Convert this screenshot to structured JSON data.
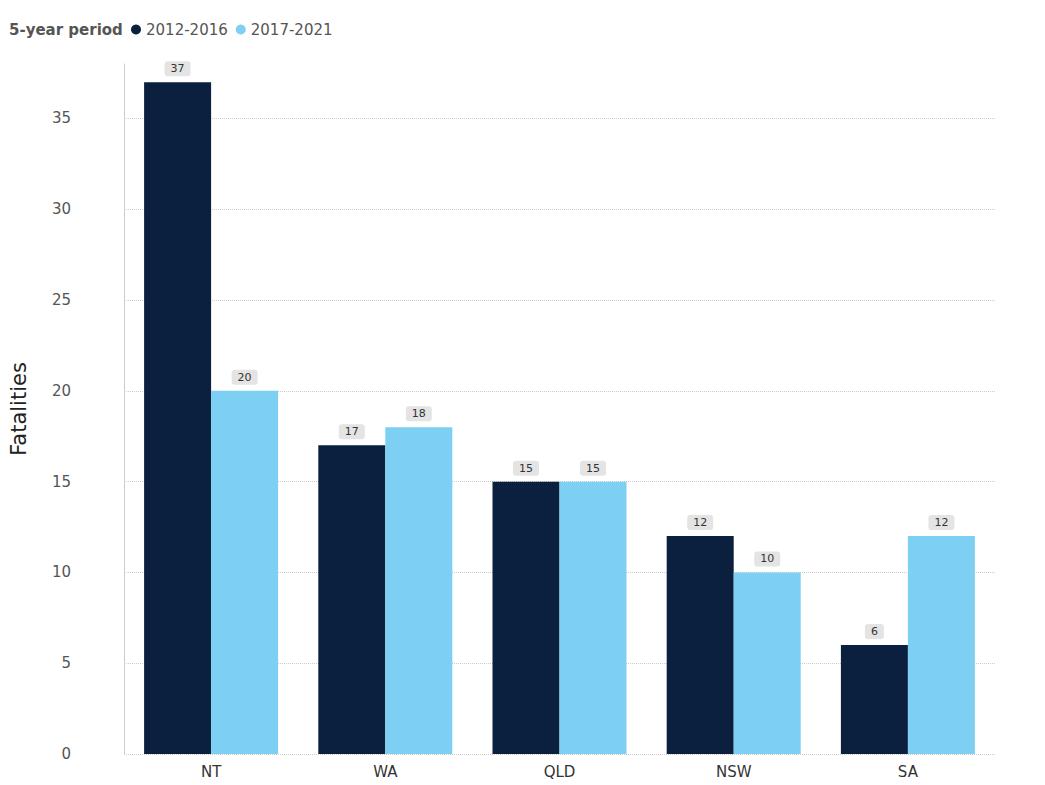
{
  "chart_data": {
    "type": "bar",
    "legend_title": "5-year period",
    "y_label": "Fatalities",
    "categories": [
      "NT",
      "WA",
      "QLD",
      "NSW",
      "SA"
    ],
    "series": [
      {
        "name": "2012-2016",
        "color": "#0b1f3f",
        "values": [
          37,
          17,
          15,
          12,
          6
        ]
      },
      {
        "name": "2017-2021",
        "color": "#7dd0f3",
        "values": [
          20,
          18,
          15,
          10,
          12
        ]
      }
    ],
    "ylim": [
      0,
      38
    ],
    "yticks": [
      0,
      5,
      10,
      15,
      20,
      25,
      30,
      35
    ],
    "grid": true,
    "legend": "top-left",
    "data_labels": true
  }
}
